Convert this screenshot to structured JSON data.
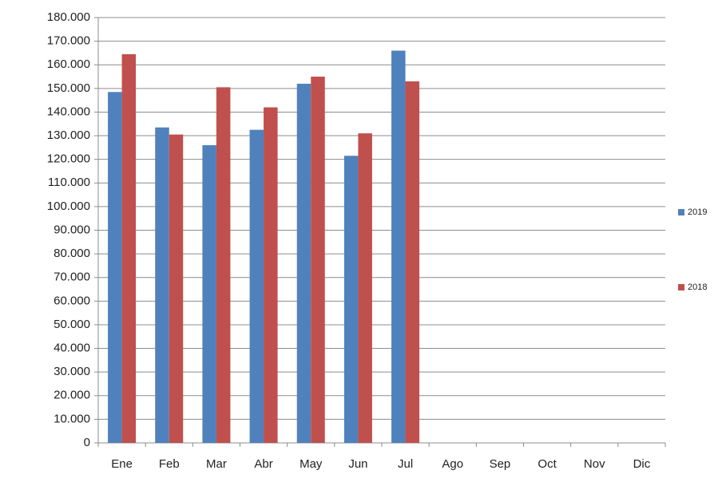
{
  "chart_data": {
    "type": "bar",
    "categories": [
      "Ene",
      "Feb",
      "Mar",
      "Abr",
      "May",
      "Jun",
      "Jul",
      "Ago",
      "Sep",
      "Oct",
      "Nov",
      "Dic"
    ],
    "series": [
      {
        "name": "2019",
        "color": "#4f81bd",
        "values": [
          148500,
          133500,
          126000,
          132500,
          152000,
          121500,
          166000,
          null,
          null,
          null,
          null,
          null
        ]
      },
      {
        "name": "2018",
        "color": "#c0504d",
        "values": [
          164500,
          130500,
          150500,
          142000,
          155000,
          131000,
          153000,
          null,
          null,
          null,
          null,
          null
        ]
      }
    ],
    "ylim": [
      0,
      180000
    ],
    "yticks": [
      0,
      {
        "value": 10000,
        "label": "10.000"
      },
      {
        "value": 20000,
        "label": "20.000"
      },
      {
        "value": 30000,
        "label": "30.000"
      },
      {
        "value": 40000,
        "label": "40.000"
      },
      {
        "value": 50000,
        "label": "50.000"
      },
      {
        "value": 60000,
        "label": "60.000"
      },
      {
        "value": 70000,
        "label": "70.000"
      },
      {
        "value": 80000,
        "label": "80.000"
      },
      {
        "value": 90000,
        "label": "90.000"
      },
      {
        "value": 100000,
        "label": "100.000"
      },
      {
        "value": 110000,
        "label": "110.000"
      },
      {
        "value": 120000,
        "label": "120.000"
      },
      {
        "value": 130000,
        "label": "130.000"
      },
      {
        "value": 140000,
        "label": "140.000"
      },
      {
        "value": 150000,
        "label": "150.000"
      },
      {
        "value": 160000,
        "label": "160.000"
      },
      {
        "value": 170000,
        "label": "170.000"
      },
      {
        "value": 180000,
        "label": "180.000"
      }
    ],
    "grid": true,
    "legend": "right"
  }
}
